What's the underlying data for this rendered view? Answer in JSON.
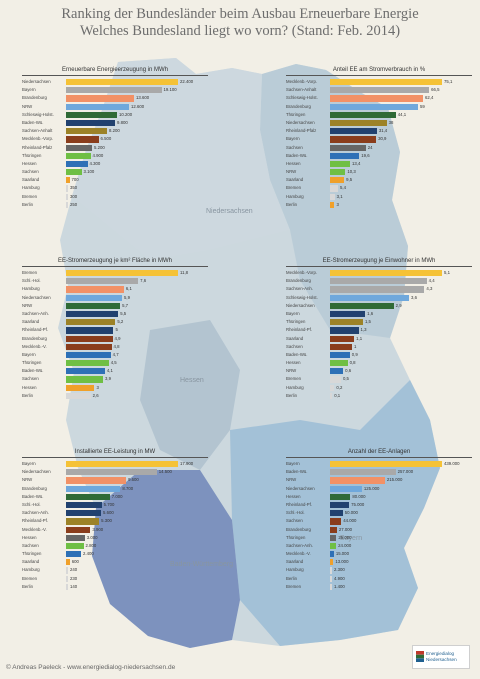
{
  "title": {
    "line1": "Ranking der Bundesländer beim Ausbau Erneuerbare Energie",
    "line2": "Welches Bundesland liegt wo vorn? (Stand: Feb. 2014)"
  },
  "map_labels": [
    "Niedersachsen",
    "Hessen",
    "Bayern",
    "Baden-Württemberg"
  ],
  "colors": {
    "gold": "#f5c236",
    "gray": "#a9a9a9",
    "salmon": "#f29166",
    "lightblue": "#6fa8dc",
    "darkgreen": "#2f6a36",
    "olive": "#9c8227",
    "navy": "#21416f",
    "brown": "#8a3d1c",
    "gray2": "#666666",
    "steel": "#2e70b6",
    "green": "#6fbf44",
    "pale": "#d8d8d8",
    "orange": "#f0a02a"
  },
  "chart_data": [
    {
      "type": "bar",
      "title": "Erneuerbare Energieerzeugung in MWh",
      "categories": [
        "Niedersachsen",
        "Bayern",
        "Brandenburg",
        "NRW",
        "Schleswig-Holst.",
        "Baden-Wü.",
        "Sachsen-Anhalt",
        "Mecklenb.-Vorp.",
        "Rheinland-Pfalz",
        "Thüringen",
        "Hessen",
        "Sachsen",
        "Saarland",
        "Hamburg",
        "Bremen",
        "Berlin"
      ],
      "values": [
        22400,
        19100,
        13600,
        12600,
        10200,
        9800,
        8200,
        6500,
        5200,
        4900,
        4300,
        3100,
        700,
        350,
        300,
        250
      ],
      "colors": [
        "#f5c236",
        "#a9a9a9",
        "#f29166",
        "#6fa8dc",
        "#2f6a36",
        "#21416f",
        "#9c8227",
        "#8a3d1c",
        "#666666",
        "#6fbf44",
        "#2e70b6",
        "#6fbf44",
        "#f0a02a",
        "#d8d8d8",
        "#d8d8d8",
        "#d8d8d8"
      ]
    },
    {
      "type": "bar",
      "title": "Anteil EE am Stromverbrauch in %",
      "categories": [
        "Mecklenb.-Vorp.",
        "Sachsen-Anhalt",
        "Schleswig-Holst.",
        "Brandenburg",
        "Thüringen",
        "Niedersachsen",
        "Rheinland-Pfalz",
        "Bayern",
        "Sachsen",
        "Baden-Wü.",
        "Hessen",
        "NRW",
        "Saarland",
        "Bremen",
        "Hamburg",
        "Berlin"
      ],
      "values": [
        75.1,
        66.5,
        62.4,
        59.0,
        44.1,
        38.0,
        31.4,
        30.9,
        24.0,
        19.6,
        13.4,
        10.3,
        9.5,
        5.4,
        3.1,
        3.0
      ],
      "colors": [
        "#f5c236",
        "#a9a9a9",
        "#f29166",
        "#6fa8dc",
        "#2f6a36",
        "#9c8227",
        "#21416f",
        "#8a3d1c",
        "#666666",
        "#2e70b6",
        "#6fbf44",
        "#6fbf44",
        "#f0a02a",
        "#d8d8d8",
        "#d8d8d8",
        "#f0a02a"
      ]
    },
    {
      "type": "bar",
      "title": "EE-Stromerzeugung je km² Fläche in MWh",
      "categories": [
        "Bremen",
        "Schl.-Hol.",
        "Hamburg",
        "Niedersachsen",
        "NRW",
        "Sachsen-Anh.",
        "Saarland",
        "Rheinland-Pf.",
        "Brandenburg",
        "Mecklenb.-V.",
        "Bayern",
        "Thüringen",
        "Baden-Wü.",
        "Sachsen",
        "Hessen",
        "Berlin"
      ],
      "values": [
        11.8,
        7.6,
        6.1,
        5.9,
        5.7,
        5.5,
        5.2,
        5.0,
        4.9,
        4.8,
        4.7,
        4.5,
        4.1,
        3.9,
        3.0,
        2.6
      ],
      "colors": [
        "#f5c236",
        "#a9a9a9",
        "#f29166",
        "#6fa8dc",
        "#2f6a36",
        "#21416f",
        "#9c8227",
        "#21416f",
        "#8a3d1c",
        "#8a3d1c",
        "#2e70b6",
        "#6fbf44",
        "#2e70b6",
        "#6fbf44",
        "#f0a02a",
        "#d8d8d8"
      ]
    },
    {
      "type": "bar",
      "title": "EE-Stromerzeugung je Einwohner in MWh",
      "categories": [
        "Mecklenb.-Vorp.",
        "Brandenburg",
        "Sachsen-Anh.",
        "Schleswig-Holst.",
        "Niedersachsen",
        "Bayern",
        "Thüringen",
        "Rheinland-Pf.",
        "Saarland",
        "Sachsen",
        "Baden-Wü.",
        "Hessen",
        "NRW",
        "Bremen",
        "Hamburg",
        "Berlin"
      ],
      "values": [
        5.1,
        4.4,
        4.3,
        3.6,
        2.9,
        1.6,
        1.5,
        1.3,
        1.1,
        1.0,
        0.9,
        0.8,
        0.6,
        0.5,
        0.2,
        0.1
      ],
      "colors": [
        "#f5c236",
        "#a9a9a9",
        "#a9a9a9",
        "#6fa8dc",
        "#2f6a36",
        "#21416f",
        "#9c8227",
        "#21416f",
        "#8a3d1c",
        "#8a3d1c",
        "#2e70b6",
        "#6fbf44",
        "#2e70b6",
        "#d8d8d8",
        "#d8d8d8",
        "#d8d8d8"
      ]
    },
    {
      "type": "bar",
      "title": "Installierte EE-Leistung in MW",
      "categories": [
        "Bayern",
        "Niedersachsen",
        "NRW",
        "Brandenburg",
        "Baden-Wü.",
        "Schl.-Hol.",
        "Sachsen-Anh.",
        "Rheinland-Pf.",
        "Mecklenb.-V.",
        "Hessen",
        "Sachsen",
        "Thüringen",
        "Saarland",
        "Hamburg",
        "Bremen",
        "Berlin"
      ],
      "values": [
        17900,
        14500,
        9600,
        8700,
        7000,
        5700,
        5600,
        5300,
        3900,
        3000,
        2800,
        2400,
        600,
        240,
        230,
        140
      ],
      "colors": [
        "#f5c236",
        "#a9a9a9",
        "#f29166",
        "#6fa8dc",
        "#2f6a36",
        "#21416f",
        "#21416f",
        "#9c8227",
        "#8a3d1c",
        "#666666",
        "#6fbf44",
        "#2e70b6",
        "#f0a02a",
        "#d8d8d8",
        "#d8d8d8",
        "#d8d8d8"
      ]
    },
    {
      "type": "bar",
      "title": "Anzahl der EE-Anlagen",
      "categories": [
        "Bayern",
        "Baden-Wü.",
        "NRW",
        "Niedersachsen",
        "Hessen",
        "Rheinland-Pf.",
        "Schl.-Hol.",
        "Sachsen",
        "Brandenburg",
        "Thüringen",
        "Sachsen-Anh.",
        "Mecklenb.-V.",
        "Saarland",
        "Hamburg",
        "Berlin",
        "Bremen"
      ],
      "values": [
        439000,
        257000,
        215000,
        125000,
        80000,
        75000,
        50000,
        44000,
        27000,
        25000,
        24000,
        15000,
        13000,
        2300,
        4900,
        1400
      ],
      "colors": [
        "#f5c236",
        "#a9a9a9",
        "#f29166",
        "#6fa8dc",
        "#2f6a36",
        "#21416f",
        "#21416f",
        "#8a3d1c",
        "#8a3d1c",
        "#666666",
        "#6fbf44",
        "#2e70b6",
        "#f0a02a",
        "#d8d8d8",
        "#d8d8d8",
        "#d8d8d8"
      ]
    }
  ],
  "footer": "© Andreas Paeleck - www.energiedialog-niedersachsen.de",
  "logo": {
    "line1": "Energiedialog",
    "line2": "Niedersachsen"
  }
}
